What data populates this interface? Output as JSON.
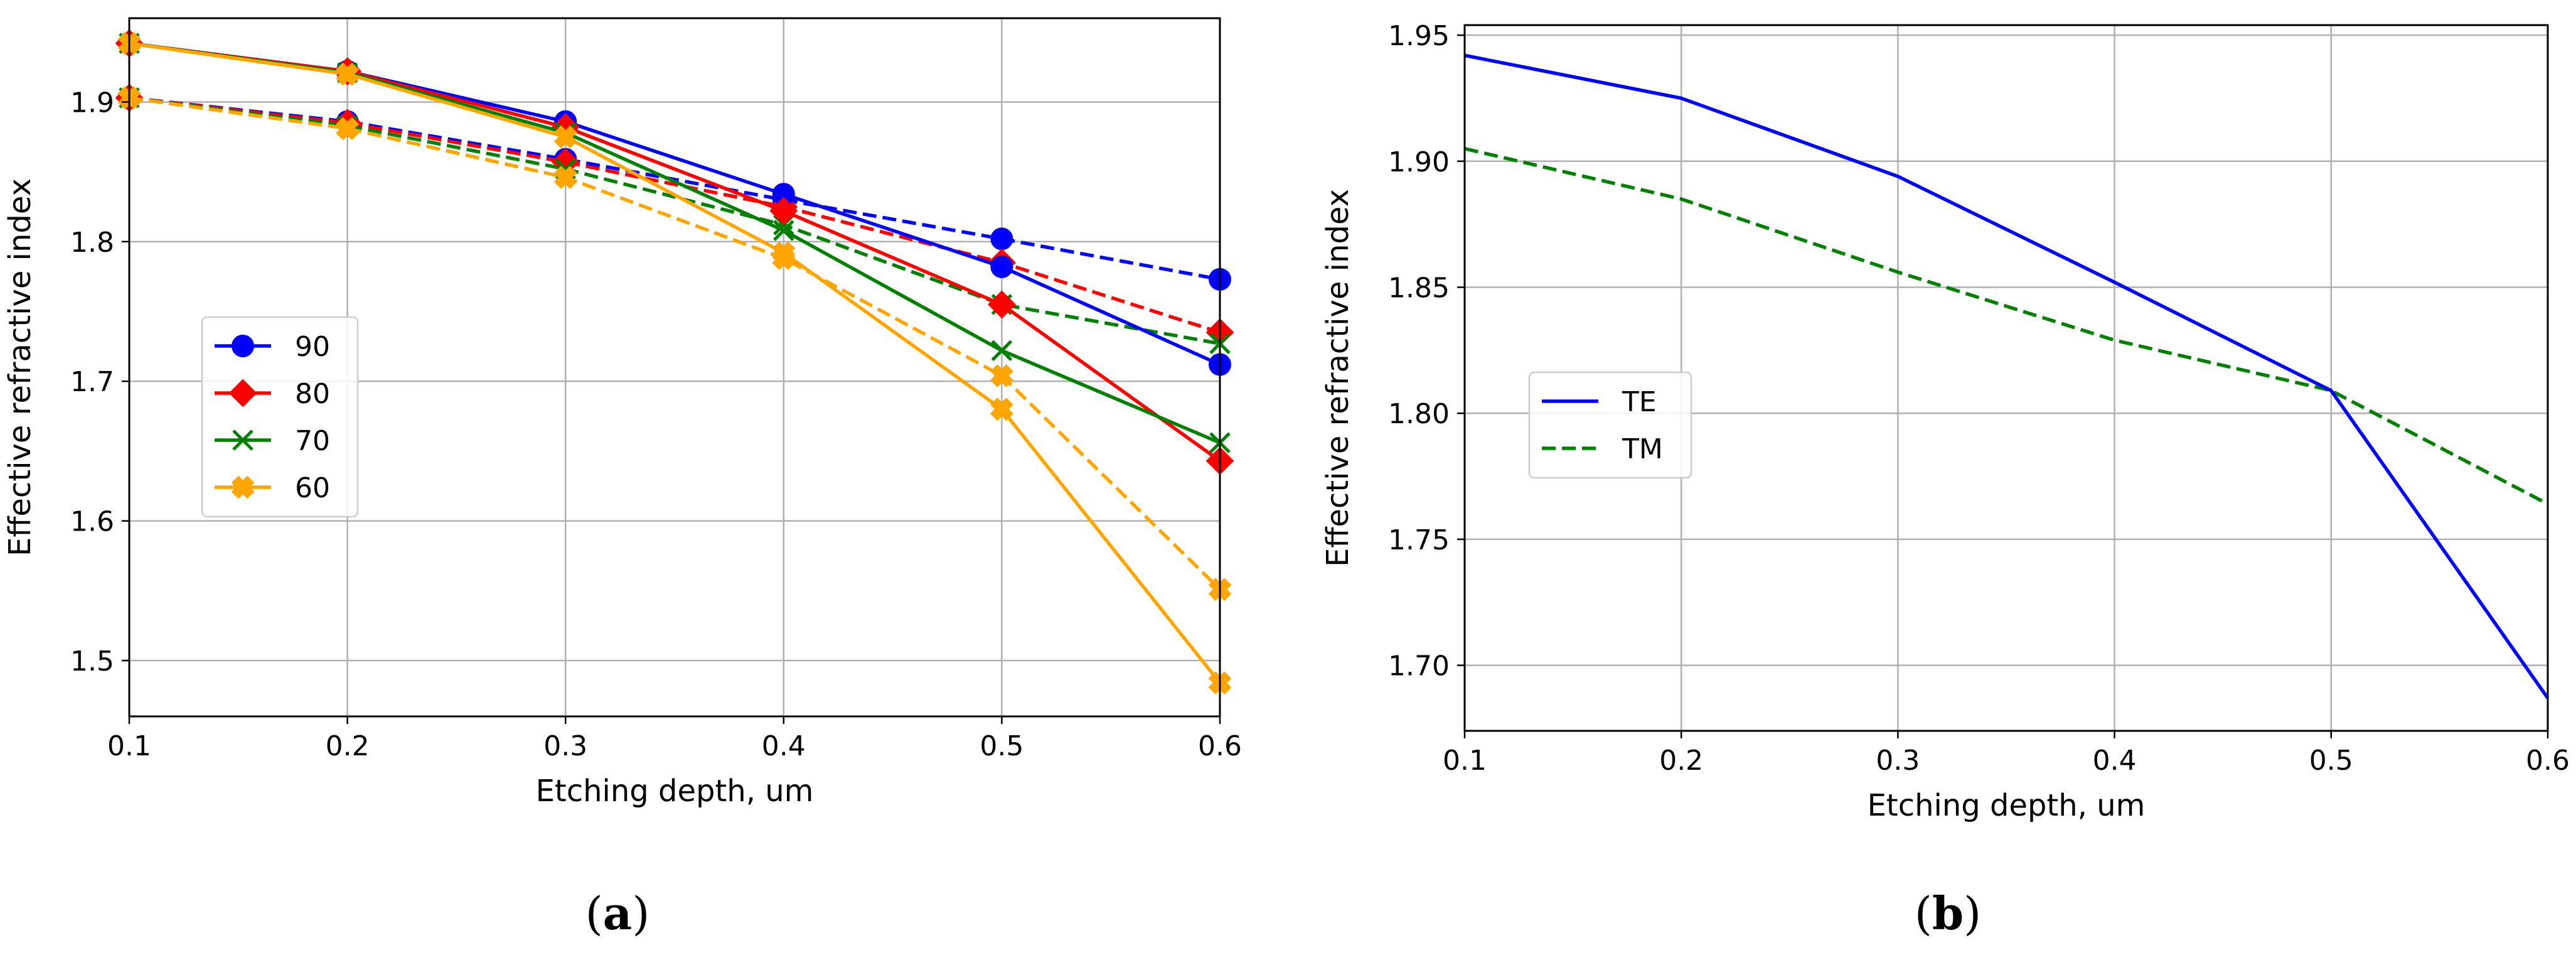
{
  "chart_data": [
    {
      "type": "line",
      "panel_label": "a",
      "xlabel": "Etching depth, um",
      "ylabel": "Effective refractive index",
      "xlim": [
        0.1,
        0.6
      ],
      "ylim": [
        1.46,
        1.96
      ],
      "xticks": [
        "0.1",
        "0.2",
        "0.3",
        "0.4",
        "0.5",
        "0.6"
      ],
      "yticks": [
        "1.5",
        "1.6",
        "1.7",
        "1.8",
        "1.9"
      ],
      "grid": true,
      "legend_position": "center-left",
      "x": [
        0.1,
        0.2,
        0.3,
        0.4,
        0.5,
        0.6
      ],
      "series": [
        {
          "name": "90",
          "mode": "solid",
          "color": "#0000ff",
          "marker": "circle",
          "values": [
            1.942,
            1.922,
            1.886,
            1.834,
            1.782,
            1.712
          ]
        },
        {
          "name": "90",
          "mode": "dashed",
          "color": "#0000ff",
          "marker": "circle",
          "values": [
            1.903,
            1.886,
            1.859,
            1.83,
            1.802,
            1.773
          ]
        },
        {
          "name": "80",
          "mode": "solid",
          "color": "#ff0000",
          "marker": "diamond",
          "values": [
            1.942,
            1.922,
            1.882,
            1.822,
            1.755,
            1.643
          ]
        },
        {
          "name": "80",
          "mode": "dashed",
          "color": "#ff0000",
          "marker": "diamond",
          "values": [
            1.903,
            1.885,
            1.857,
            1.825,
            1.785,
            1.735
          ]
        },
        {
          "name": "70",
          "mode": "solid",
          "color": "#008000",
          "marker": "x",
          "values": [
            1.942,
            1.921,
            1.878,
            1.808,
            1.722,
            1.656
          ]
        },
        {
          "name": "70",
          "mode": "dashed",
          "color": "#008000",
          "marker": "x",
          "values": [
            1.903,
            1.883,
            1.852,
            1.812,
            1.755,
            1.727
          ]
        },
        {
          "name": "60",
          "mode": "solid",
          "color": "#ffa500",
          "marker": "plus",
          "values": [
            1.942,
            1.92,
            1.875,
            1.792,
            1.68,
            1.484
          ]
        },
        {
          "name": "60",
          "mode": "dashed",
          "color": "#ffa500",
          "marker": "plus",
          "values": [
            1.903,
            1.881,
            1.846,
            1.788,
            1.704,
            1.551
          ]
        }
      ]
    },
    {
      "type": "line",
      "panel_label": "b",
      "xlabel": "Etching depth, um",
      "ylabel": "Effective refractive index",
      "xlim": [
        0.1,
        0.6
      ],
      "ylim": [
        1.674,
        1.954
      ],
      "xticks": [
        "0.1",
        "0.2",
        "0.3",
        "0.4",
        "0.5",
        "0.6"
      ],
      "yticks": [
        "1.70",
        "1.75",
        "1.80",
        "1.85",
        "1.90",
        "1.95"
      ],
      "grid": true,
      "legend_position": "center-left",
      "x": [
        0.1,
        0.2,
        0.3,
        0.4,
        0.5,
        0.6
      ],
      "series": [
        {
          "name": "TE",
          "mode": "solid",
          "color": "#0000ff",
          "values": [
            1.942,
            1.925,
            1.894,
            1.852,
            1.809,
            1.687
          ]
        },
        {
          "name": "TM",
          "mode": "dashed",
          "color": "#008000",
          "values": [
            1.905,
            1.885,
            1.856,
            1.829,
            1.809,
            1.764
          ]
        }
      ]
    }
  ],
  "captions": {
    "a": {
      "open": "(",
      "letter": "a",
      "close": ")"
    },
    "b": {
      "open": "(",
      "letter": "b",
      "close": ")"
    }
  }
}
